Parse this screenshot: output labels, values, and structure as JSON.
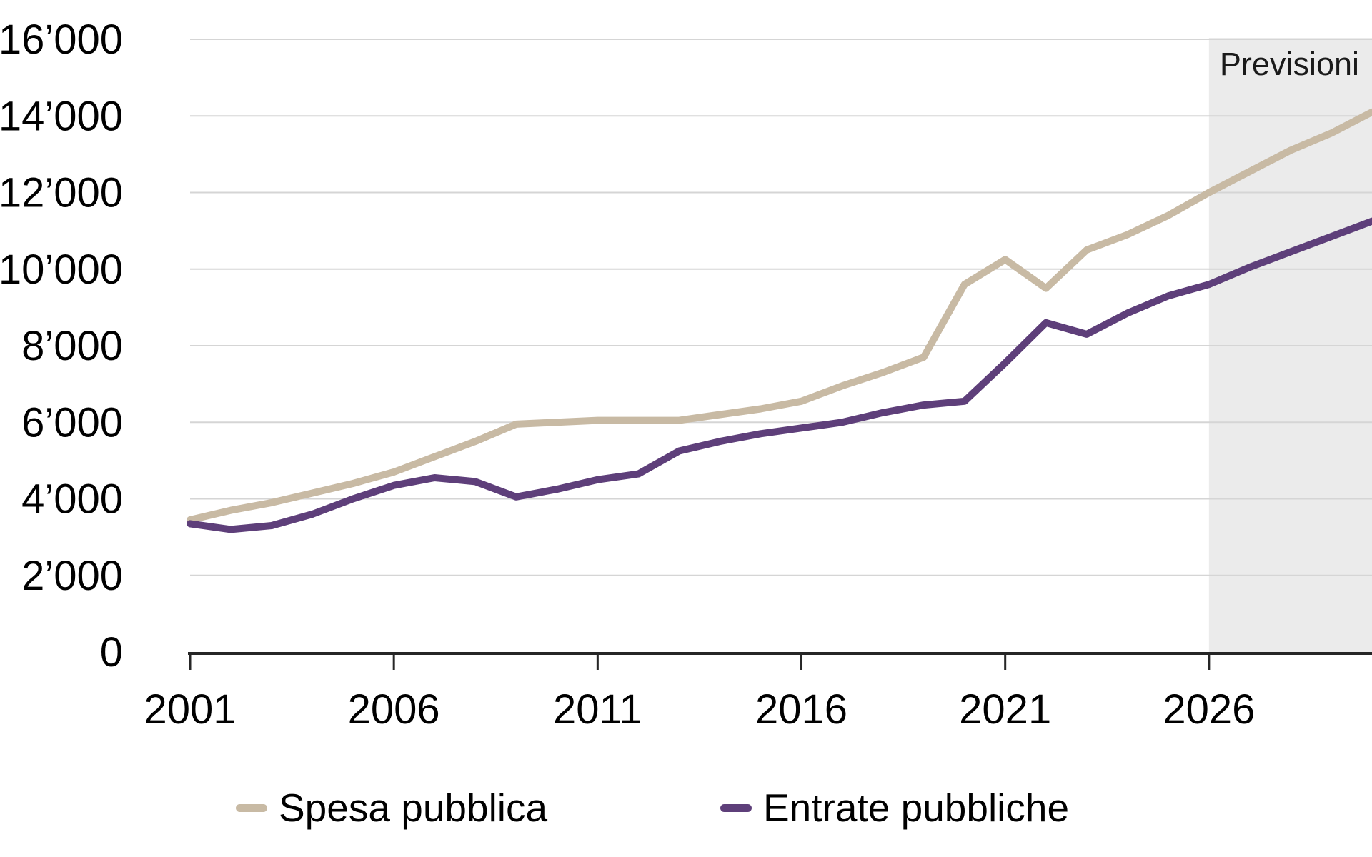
{
  "chart_data": {
    "type": "line",
    "x": [
      2001,
      2002,
      2003,
      2004,
      2005,
      2006,
      2007,
      2008,
      2009,
      2010,
      2011,
      2012,
      2013,
      2014,
      2015,
      2016,
      2017,
      2018,
      2019,
      2020,
      2021,
      2022,
      2023,
      2024,
      2025,
      2026,
      2027,
      2028,
      2029,
      2030
    ],
    "series": [
      {
        "name": "Spesa pubblica",
        "color": "#c8baa4",
        "values": [
          3450,
          3700,
          3900,
          4150,
          4400,
          4700,
          5100,
          5500,
          5950,
          6000,
          6050,
          6050,
          6050,
          6200,
          6350,
          6550,
          6950,
          7300,
          7700,
          9600,
          10250,
          9500,
          10500,
          10900,
          11400,
          12000,
          12550,
          13100,
          13550,
          14100
        ]
      },
      {
        "name": "Entrate pubbliche",
        "color": "#5e3f7a",
        "values": [
          3350,
          3200,
          3300,
          3600,
          4000,
          4350,
          4550,
          4450,
          4050,
          4250,
          4500,
          4650,
          5250,
          5500,
          5700,
          5850,
          6000,
          6250,
          6450,
          6550,
          7550,
          8600,
          8300,
          8850,
          9300,
          9600,
          10050,
          10450,
          10850,
          11250
        ]
      }
    ],
    "title": "",
    "xlabel": "",
    "ylabel": "",
    "xlim": [
      2001,
      2030
    ],
    "ylim": [
      0,
      16000
    ],
    "xticks": [
      2001,
      2006,
      2011,
      2016,
      2021,
      2026
    ],
    "xtick_labels": [
      "2001",
      "2006",
      "2011",
      "2016",
      "2021",
      "2026"
    ],
    "yticks": [
      0,
      2000,
      4000,
      6000,
      8000,
      10000,
      12000,
      14000,
      16000
    ],
    "ytick_labels": [
      "0",
      "2’000",
      "4’000",
      "6’000",
      "8’000",
      "10’000",
      "12’000",
      "14’000",
      "16’000"
    ],
    "grid": true,
    "legend_position": "bottom",
    "forecast": {
      "start_x": 2026,
      "label": "Previsioni"
    }
  },
  "legend": [
    {
      "label": "Spesa pubblica",
      "color": "#c8baa4"
    },
    {
      "label": "Entrate pubbliche",
      "color": "#5e3f7a"
    }
  ],
  "style": {
    "grid_color": "#d5d5d5",
    "axis_color": "#262626",
    "forecast_fill": "#ebebeb",
    "forecast_text_color": "#1a1a1a",
    "tick_label_color": "#000000"
  }
}
